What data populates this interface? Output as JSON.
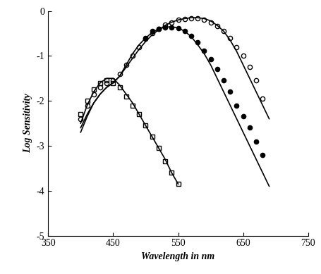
{
  "chart_data": {
    "type": "scatter",
    "x_label": "Wavelength in nm",
    "y_label": "Log Sensitivity",
    "xlim": [
      350,
      750
    ],
    "xticks": [
      350,
      450,
      550,
      650,
      750
    ],
    "ylim": [
      -5,
      0
    ],
    "yticks": [
      -5,
      -4,
      -3,
      -2,
      -1,
      0
    ],
    "series": [
      {
        "type": "line",
        "color": "#000000",
        "line_style": "solid",
        "x": [
          400,
          410,
          420,
          430,
          440,
          450,
          460,
          470,
          480,
          490,
          500,
          510,
          520,
          530,
          540,
          550
        ],
        "values": [
          -2.5,
          -2.1,
          -1.8,
          -1.6,
          -1.5,
          -1.5,
          -1.65,
          -1.85,
          -2.05,
          -2.3,
          -2.55,
          -2.8,
          -3.05,
          -3.3,
          -3.6,
          -3.85
        ]
      },
      {
        "type": "line",
        "color": "#000000",
        "line_style": "solid",
        "x": [
          400,
          410,
          420,
          430,
          440,
          450,
          460,
          470,
          480,
          490,
          500,
          510,
          520,
          530,
          540,
          550,
          560,
          570,
          580,
          590,
          600,
          610,
          620,
          630,
          640,
          650,
          660,
          670,
          680,
          690
        ],
        "values": [
          -2.6,
          -2.3,
          -2.05,
          -1.85,
          -1.7,
          -1.6,
          -1.45,
          -1.25,
          -1.05,
          -0.85,
          -0.68,
          -0.53,
          -0.42,
          -0.32,
          -0.25,
          -0.2,
          -0.17,
          -0.15,
          -0.15,
          -0.17,
          -0.22,
          -0.32,
          -0.45,
          -0.65,
          -0.9,
          -1.2,
          -1.5,
          -1.8,
          -2.1,
          -2.4
        ]
      },
      {
        "type": "line",
        "color": "#000000",
        "line_style": "solid",
        "x": [
          400,
          410,
          420,
          430,
          440,
          450,
          460,
          470,
          480,
          490,
          500,
          510,
          520,
          530,
          540,
          550,
          560,
          570,
          580,
          590,
          600,
          610,
          620,
          630,
          640,
          650,
          660,
          670,
          680,
          690
        ],
        "values": [
          -2.7,
          -2.35,
          -2.05,
          -1.85,
          -1.7,
          -1.6,
          -1.45,
          -1.2,
          -0.95,
          -0.75,
          -0.6,
          -0.48,
          -0.4,
          -0.36,
          -0.35,
          -0.38,
          -0.45,
          -0.57,
          -0.75,
          -0.95,
          -1.2,
          -1.5,
          -1.8,
          -2.1,
          -2.4,
          -2.7,
          -3.0,
          -3.3,
          -3.6,
          -3.9
        ]
      },
      {
        "type": "scatter",
        "color": "#000000",
        "marker": "open_square",
        "x": [
          400,
          410,
          420,
          430,
          440,
          450,
          460,
          470,
          480,
          490,
          500,
          510,
          520,
          530,
          540,
          550
        ],
        "values": [
          -2.3,
          -2.0,
          -1.75,
          -1.6,
          -1.55,
          -1.6,
          -1.7,
          -1.9,
          -2.1,
          -2.3,
          -2.55,
          -2.8,
          -3.05,
          -3.35,
          -3.6,
          -3.85
        ]
      },
      {
        "type": "scatter",
        "color": "#000000",
        "marker": "open_circle",
        "x": [
          400,
          410,
          420,
          430,
          440,
          450,
          460,
          470,
          480,
          490,
          500,
          510,
          520,
          530,
          540,
          550,
          560,
          570,
          580,
          590,
          600,
          610,
          620,
          630,
          640,
          650,
          660,
          670,
          680
        ],
        "values": [
          -2.4,
          -2.1,
          -1.85,
          -1.7,
          -1.6,
          -1.55,
          -1.4,
          -1.2,
          -1.0,
          -0.8,
          -0.62,
          -0.5,
          -0.4,
          -0.3,
          -0.25,
          -0.2,
          -0.18,
          -0.17,
          -0.17,
          -0.19,
          -0.25,
          -0.33,
          -0.45,
          -0.6,
          -0.8,
          -1.0,
          -1.25,
          -1.55,
          -1.95
        ]
      },
      {
        "type": "scatter",
        "color": "#000000",
        "marker": "filled_circle",
        "x": [
          500,
          510,
          520,
          530,
          540,
          550,
          560,
          570,
          580,
          590,
          600,
          610,
          620,
          630,
          640,
          650,
          660,
          670,
          680
        ],
        "values": [
          -0.6,
          -0.45,
          -0.4,
          -0.37,
          -0.36,
          -0.38,
          -0.45,
          -0.55,
          -0.7,
          -0.88,
          -1.08,
          -1.3,
          -1.55,
          -1.8,
          -2.1,
          -2.35,
          -2.6,
          -2.9,
          -3.2
        ]
      }
    ]
  }
}
